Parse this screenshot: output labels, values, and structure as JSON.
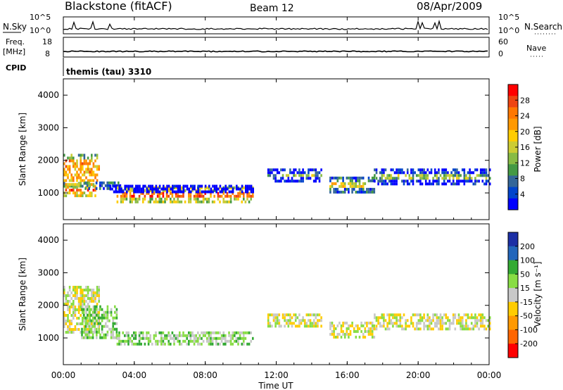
{
  "header": {
    "station": "Blackstone (fitACF)",
    "beam": "Beam 12",
    "date": "08/Apr/2009"
  },
  "sky_panel": {
    "left_label": "N.Sky",
    "right_label": "N.Search",
    "left_ticks": [
      "10^5",
      "10^0"
    ],
    "right_ticks": [
      "10^5",
      "10^0"
    ]
  },
  "freq_panel": {
    "left_label_1": "Freq.",
    "left_label_2": "[MHz]",
    "left_ticks": [
      "18",
      "8"
    ],
    "right_label": "Nave",
    "right_ticks": [
      "60",
      "0"
    ]
  },
  "cpid": {
    "label": "CPID",
    "value": "themis (tau) 3310"
  },
  "axes": {
    "ylabel": "Slant Range [km]",
    "xlabel": "Time UT",
    "xticks": [
      "00:00",
      "04:00",
      "08:00",
      "12:00",
      "16:00",
      "20:00",
      "00:00"
    ],
    "yticks": [
      "1000",
      "2000",
      "3000",
      "4000"
    ]
  },
  "power_scale": {
    "label": "Power [dB]",
    "ticks": [
      "28",
      "24",
      "20",
      "16",
      "12",
      "8",
      "4"
    ],
    "colors": [
      "#ff0000",
      "#ee4411",
      "#ff7700",
      "#ff9900",
      "#ffcc00",
      "#cccc33",
      "#88bb44",
      "#449944",
      "#336699",
      "#0044cc",
      "#0000ff"
    ]
  },
  "velocity_scale": {
    "label": "Velocity [m s⁻¹]",
    "ticks": [
      "200",
      "100",
      "50",
      "15",
      "-15",
      "-50",
      "-100",
      "-200"
    ],
    "colors": [
      "#1c2fa5",
      "#2266bb",
      "#33aa33",
      "#88dd44",
      "#c8c8c8",
      "#ffcc00",
      "#ff9900",
      "#ff6600",
      "#ff0000"
    ]
  },
  "chart_data": [
    {
      "type": "heatmap",
      "title": "Power [dB]",
      "xlabel": "Time UT",
      "ylabel": "Slant Range [km]",
      "xlim": [
        0,
        24
      ],
      "ylim": [
        180,
        4500
      ],
      "zlim": [
        0,
        30
      ],
      "bands": [
        {
          "t0": 0.0,
          "t1": 2.0,
          "r0": 1200,
          "r1": 2200,
          "value": 20
        },
        {
          "t0": 0.0,
          "t1": 1.8,
          "r0": 950,
          "r1": 1300,
          "value": 26
        },
        {
          "t0": 1.2,
          "t1": 3.2,
          "r0": 1100,
          "r1": 1350,
          "value": 16
        },
        {
          "t0": 3.0,
          "t1": 10.7,
          "r0": 700,
          "r1": 1200,
          "value": 24
        },
        {
          "t0": 2.5,
          "t1": 10.7,
          "r0": 1050,
          "r1": 1250,
          "value": 8
        },
        {
          "t0": 11.5,
          "t1": 14.5,
          "r0": 1400,
          "r1": 1750,
          "value": 12
        },
        {
          "t0": 15.0,
          "t1": 17.5,
          "r0": 1000,
          "r1": 1500,
          "value": 16
        },
        {
          "t0": 17.5,
          "t1": 24.0,
          "r0": 1300,
          "r1": 1750,
          "value": 12
        }
      ]
    },
    {
      "type": "heatmap",
      "title": "Velocity [m s⁻¹]",
      "xlabel": "Time UT",
      "ylabel": "Slant Range [km]",
      "xlim": [
        0,
        24
      ],
      "ylim": [
        180,
        4500
      ],
      "zlim": [
        -200,
        200
      ],
      "bands": [
        {
          "t0": 0.0,
          "t1": 2.0,
          "r0": 1200,
          "r1": 2600,
          "value": 0
        },
        {
          "t0": 1.0,
          "t1": 3.0,
          "r0": 1000,
          "r1": 2000,
          "value": 50
        },
        {
          "t0": 3.0,
          "t1": 10.7,
          "r0": 800,
          "r1": 1200,
          "value": 40
        },
        {
          "t0": 11.5,
          "t1": 14.5,
          "r0": 1350,
          "r1": 1750,
          "value": 0
        },
        {
          "t0": 15.0,
          "t1": 17.5,
          "r0": 1000,
          "r1": 1500,
          "value": 0
        },
        {
          "t0": 17.5,
          "t1": 24.0,
          "r0": 1300,
          "r1": 1750,
          "value": 0
        }
      ]
    }
  ]
}
